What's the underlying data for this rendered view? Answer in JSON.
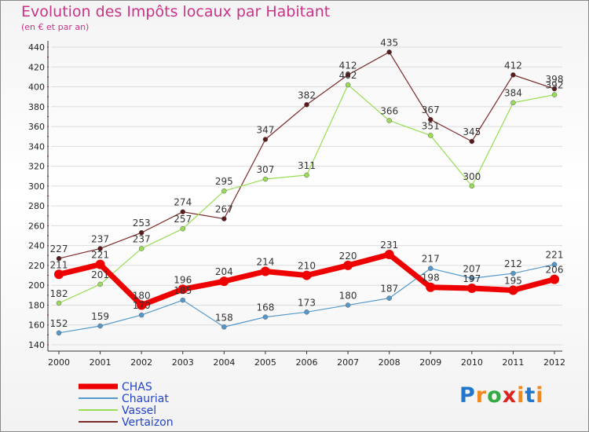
{
  "title": "Evolution des Impôts locaux par Habitant",
  "subtitle": "(en € et par an)",
  "logo": {
    "text": "Proxiti",
    "colors": [
      "#2277cc",
      "#ee8822",
      "#33aa44",
      "#dd2222",
      "#ee8822",
      "#2277cc",
      "#ee8822"
    ]
  },
  "chart_data": {
    "type": "line",
    "x": [
      "2000",
      "2001",
      "2002",
      "2003",
      "2004",
      "2005",
      "2006",
      "2007",
      "2008",
      "2009",
      "2010",
      "2011",
      "2012"
    ],
    "ylim": [
      140,
      440
    ],
    "yticks": [
      140,
      160,
      180,
      200,
      220,
      240,
      260,
      280,
      300,
      320,
      340,
      360,
      380,
      400,
      420,
      440
    ],
    "grid": true,
    "legend_position": "bottom-left",
    "series": [
      {
        "name": "CHAS",
        "color": "#ee0000",
        "width": 7,
        "marker": 6,
        "values": [
          211,
          221,
          180,
          196,
          204,
          214,
          210,
          220,
          231,
          198,
          197,
          195,
          206
        ]
      },
      {
        "name": "Chauriat",
        "color": "#5599cc",
        "width": 1.2,
        "marker": 3,
        "values": [
          152,
          159,
          170,
          185,
          158,
          168,
          173,
          180,
          187,
          217,
          207,
          212,
          221
        ]
      },
      {
        "name": "Vassel",
        "color": "#99dd55",
        "width": 1.2,
        "marker": 3,
        "values": [
          182,
          201,
          237,
          257,
          295,
          307,
          311,
          402,
          366,
          351,
          300,
          384,
          392
        ]
      },
      {
        "name": "Vertaizon",
        "color": "#7a2a2a",
        "width": 1.2,
        "marker": 3,
        "values": [
          227,
          237,
          253,
          274,
          267,
          347,
          382,
          412,
          435,
          367,
          345,
          412,
          398
        ]
      }
    ]
  }
}
